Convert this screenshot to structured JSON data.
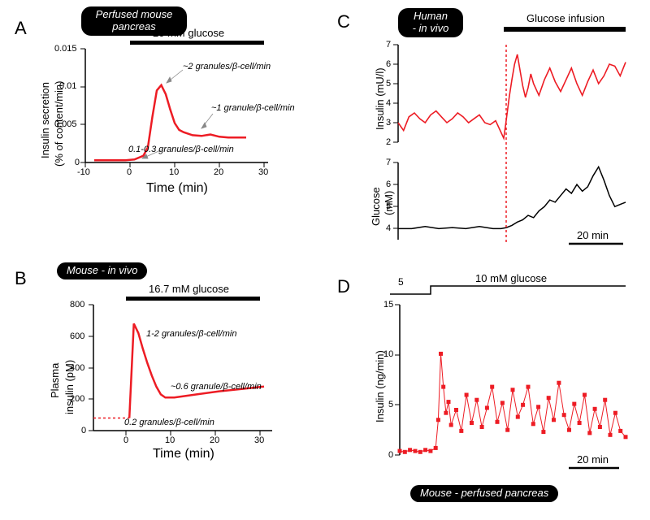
{
  "panelA": {
    "letter": "A",
    "badge": "Perfused mouse\npancreas",
    "stim_label": "20 mM glucose",
    "y_label": "Insulin secretion\n(% of content/min)",
    "x_label": "Time (min)",
    "annotations": {
      "peak": "~2 granules/β-cell/min",
      "plateau": "~1 granule/β-cell/min",
      "basal": "0.1-0.3  granules/β-cell/min"
    },
    "x_ticks": [
      "-10",
      "0",
      "10",
      "20",
      "30"
    ],
    "y_ticks": [
      "0",
      "0.005",
      "0.01",
      "0.015"
    ],
    "xlim": [
      -10,
      30
    ],
    "ylim": [
      0,
      0.015
    ],
    "line_color": "#ed1c24",
    "line_width": 2.5,
    "data": [
      [
        -8,
        0.0003
      ],
      [
        -4,
        0.0003
      ],
      [
        -1,
        0.0003
      ],
      [
        1,
        0.0004
      ],
      [
        3,
        0.0009
      ],
      [
        4,
        0.002
      ],
      [
        5,
        0.006
      ],
      [
        6,
        0.0095
      ],
      [
        7,
        0.0102
      ],
      [
        8,
        0.009
      ],
      [
        9,
        0.007
      ],
      [
        10,
        0.0052
      ],
      [
        11,
        0.0043
      ],
      [
        12,
        0.004
      ],
      [
        14,
        0.0036
      ],
      [
        16,
        0.0035
      ],
      [
        18,
        0.0037
      ],
      [
        20,
        0.0034
      ],
      [
        22,
        0.0033
      ],
      [
        24,
        0.0033
      ],
      [
        26,
        0.0033
      ]
    ]
  },
  "panelB": {
    "letter": "B",
    "badge": "Mouse - in vivo",
    "stim_label": "16.7 mM glucose",
    "y_label": "Plasma\ninsulin  (pM)",
    "x_label": "Time (min)",
    "annotations": {
      "peak": "1-2 granules/β-cell/min",
      "plateau": "~0.6 granule/β-cell/min",
      "basal": "0.2 granules/β-cell/min"
    },
    "x_ticks": [
      "0",
      "10",
      "20",
      "30"
    ],
    "y_ticks": [
      "0",
      "200",
      "400",
      "600",
      "800"
    ],
    "xlim": [
      -8,
      30
    ],
    "ylim": [
      0,
      800
    ],
    "line_color": "#ed1c24",
    "line_width": 2.5,
    "basal_dash": [
      [
        -8,
        80
      ],
      [
        0,
        80
      ]
    ],
    "data": [
      [
        0,
        80
      ],
      [
        1,
        680
      ],
      [
        2,
        620
      ],
      [
        3,
        520
      ],
      [
        4,
        430
      ],
      [
        5,
        350
      ],
      [
        6,
        280
      ],
      [
        7,
        230
      ],
      [
        8,
        210
      ],
      [
        10,
        210
      ],
      [
        15,
        230
      ],
      [
        20,
        250
      ],
      [
        25,
        265
      ],
      [
        30,
        280
      ]
    ]
  },
  "panelC": {
    "letter": "C",
    "badge": "Human\n- in vivo",
    "stim_label": "Glucose infusion",
    "insulin": {
      "y_label": "Insulin (mU/l)",
      "y_ticks": [
        "2",
        "3",
        "4",
        "5",
        "6",
        "7"
      ],
      "ylim": [
        2,
        7
      ],
      "color": "#ed1c24",
      "line_width": 1.6,
      "data": [
        [
          0,
          3.0
        ],
        [
          2,
          2.6
        ],
        [
          4,
          3.3
        ],
        [
          6,
          3.5
        ],
        [
          8,
          3.2
        ],
        [
          10,
          3.0
        ],
        [
          12,
          3.4
        ],
        [
          14,
          3.6
        ],
        [
          16,
          3.3
        ],
        [
          18,
          3.0
        ],
        [
          20,
          3.2
        ],
        [
          22,
          3.5
        ],
        [
          24,
          3.3
        ],
        [
          26,
          3.0
        ],
        [
          28,
          3.2
        ],
        [
          30,
          3.4
        ],
        [
          32,
          3.0
        ],
        [
          34,
          2.9
        ],
        [
          36,
          3.1
        ],
        [
          38,
          2.5
        ],
        [
          39,
          2.2
        ],
        [
          40,
          3.2
        ],
        [
          41,
          4.3
        ],
        [
          42,
          5.2
        ],
        [
          43,
          6.0
        ],
        [
          44,
          6.5
        ],
        [
          45,
          5.7
        ],
        [
          46,
          4.9
        ],
        [
          47,
          4.3
        ],
        [
          48,
          4.8
        ],
        [
          49,
          5.5
        ],
        [
          50,
          5.0
        ],
        [
          52,
          4.4
        ],
        [
          54,
          5.2
        ],
        [
          56,
          5.8
        ],
        [
          58,
          5.1
        ],
        [
          60,
          4.6
        ],
        [
          62,
          5.2
        ],
        [
          64,
          5.8
        ],
        [
          66,
          5.0
        ],
        [
          68,
          4.4
        ],
        [
          70,
          5.1
        ],
        [
          72,
          5.7
        ],
        [
          74,
          5.0
        ],
        [
          76,
          5.4
        ],
        [
          78,
          6.0
        ],
        [
          80,
          5.9
        ],
        [
          82,
          5.4
        ],
        [
          84,
          6.1
        ]
      ]
    },
    "glucose": {
      "y_label": "Glucose\n(mM)",
      "y_ticks": [
        "4",
        "5",
        "6",
        "7"
      ],
      "ylim": [
        3.5,
        7
      ],
      "color": "#000",
      "line_width": 1.6,
      "data": [
        [
          0,
          4.0
        ],
        [
          5,
          4.0
        ],
        [
          10,
          4.1
        ],
        [
          15,
          4.0
        ],
        [
          20,
          4.05
        ],
        [
          25,
          4.0
        ],
        [
          30,
          4.1
        ],
        [
          35,
          4.0
        ],
        [
          38,
          4.0
        ],
        [
          40,
          4.05
        ],
        [
          42,
          4.15
        ],
        [
          44,
          4.3
        ],
        [
          46,
          4.4
        ],
        [
          48,
          4.6
        ],
        [
          50,
          4.5
        ],
        [
          52,
          4.8
        ],
        [
          54,
          5.0
        ],
        [
          56,
          5.3
        ],
        [
          58,
          5.2
        ],
        [
          60,
          5.5
        ],
        [
          62,
          5.8
        ],
        [
          64,
          5.6
        ],
        [
          66,
          6.0
        ],
        [
          68,
          5.7
        ],
        [
          70,
          5.9
        ],
        [
          72,
          6.4
        ],
        [
          74,
          6.8
        ],
        [
          76,
          6.2
        ],
        [
          78,
          5.5
        ],
        [
          80,
          5.0
        ],
        [
          82,
          5.1
        ],
        [
          84,
          5.2
        ]
      ]
    },
    "vline_x": 40,
    "scale_label": "20 min",
    "scale_min": 20
  },
  "panelD": {
    "letter": "D",
    "badge": "Mouse  - perfused pancreas",
    "stim_low": "5",
    "stim_high": "10 mM glucose",
    "y_label": "Insulin (ng/min)",
    "y_ticks": [
      "0",
      "5",
      "10",
      "15"
    ],
    "ylim": [
      0,
      15
    ],
    "color": "#ed1c24",
    "line_width": 1,
    "marker": "square",
    "marker_size": 3,
    "scale_label": "20 min",
    "scale_min": 20,
    "data": [
      [
        0,
        0.4
      ],
      [
        2,
        0.3
      ],
      [
        4,
        0.5
      ],
      [
        6,
        0.4
      ],
      [
        8,
        0.3
      ],
      [
        10,
        0.5
      ],
      [
        12,
        0.4
      ],
      [
        14,
        0.7
      ],
      [
        15,
        3.5
      ],
      [
        16,
        10.1
      ],
      [
        17,
        6.8
      ],
      [
        18,
        4.2
      ],
      [
        19,
        5.3
      ],
      [
        20,
        3.0
      ],
      [
        22,
        4.5
      ],
      [
        24,
        2.4
      ],
      [
        26,
        6.0
      ],
      [
        28,
        3.2
      ],
      [
        30,
        5.5
      ],
      [
        32,
        2.8
      ],
      [
        34,
        4.7
      ],
      [
        36,
        6.8
      ],
      [
        38,
        3.3
      ],
      [
        40,
        5.2
      ],
      [
        42,
        2.5
      ],
      [
        44,
        6.5
      ],
      [
        46,
        3.8
      ],
      [
        48,
        5.0
      ],
      [
        50,
        6.8
      ],
      [
        52,
        3.1
      ],
      [
        54,
        4.8
      ],
      [
        56,
        2.3
      ],
      [
        58,
        5.7
      ],
      [
        60,
        3.5
      ],
      [
        62,
        7.2
      ],
      [
        64,
        4.0
      ],
      [
        66,
        2.5
      ],
      [
        68,
        5.1
      ],
      [
        70,
        3.2
      ],
      [
        72,
        6.0
      ],
      [
        74,
        2.2
      ],
      [
        76,
        4.6
      ],
      [
        78,
        2.8
      ],
      [
        80,
        5.5
      ],
      [
        82,
        2.0
      ],
      [
        84,
        4.2
      ],
      [
        86,
        2.4
      ],
      [
        88,
        1.8
      ]
    ]
  },
  "colors": {
    "red": "#ed1c24",
    "black": "#000000",
    "gray": "#888888",
    "bg": "#ffffff"
  },
  "font_sizes": {
    "panel_letter": 22,
    "badge": 13,
    "label": 13,
    "xlabel": 16,
    "annot": 11,
    "tick": 11
  }
}
